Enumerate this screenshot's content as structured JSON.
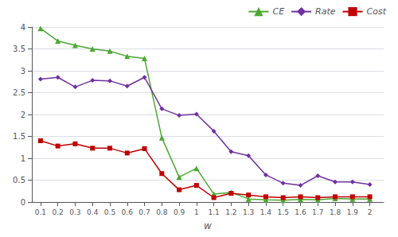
{
  "chart_data": {
    "type": "line",
    "xlabel": "w",
    "x": [
      0.1,
      0.2,
      0.3,
      0.4,
      0.5,
      0.6,
      0.7,
      0.8,
      0.9,
      1.0,
      1.1,
      1.2,
      1.3,
      1.4,
      1.5,
      1.6,
      1.7,
      1.8,
      1.9,
      2.0
    ],
    "series": [
      {
        "name": "CE",
        "color": "#4aa832",
        "marker": "triangle",
        "values": [
          3.97,
          3.68,
          3.58,
          3.5,
          3.45,
          3.33,
          3.28,
          1.47,
          0.57,
          0.77,
          0.18,
          0.22,
          0.07,
          0.05,
          0.04,
          0.06,
          0.05,
          0.08,
          0.07,
          0.07
        ]
      },
      {
        "name": "Rate",
        "color": "#7030a0",
        "marker": "diamond",
        "values": [
          2.81,
          2.85,
          2.63,
          2.78,
          2.77,
          2.65,
          2.85,
          2.13,
          1.98,
          2.01,
          1.62,
          1.15,
          1.06,
          0.62,
          0.43,
          0.38,
          0.6,
          0.46,
          0.46,
          0.4
        ]
      },
      {
        "name": "Cost",
        "color": "#c00000",
        "marker": "square",
        "values": [
          1.4,
          1.28,
          1.33,
          1.23,
          1.23,
          1.12,
          1.22,
          0.65,
          0.28,
          0.38,
          0.1,
          0.2,
          0.16,
          0.12,
          0.1,
          0.12,
          0.1,
          0.12,
          0.12,
          0.12
        ]
      }
    ],
    "xlim": [
      0.05,
      2.08
    ],
    "xticks": [
      0.1,
      0.2,
      0.3,
      0.4,
      0.5,
      0.6,
      0.7,
      0.8,
      0.9,
      1,
      1.1,
      1.2,
      1.3,
      1.4,
      1.5,
      1.6,
      1.7,
      1.8,
      1.9,
      2
    ],
    "ylim": [
      0,
      4.0
    ],
    "yticks": [
      0,
      0.5,
      1,
      1.5,
      2,
      2.5,
      3,
      3.5,
      4
    ],
    "grid": "y",
    "legend": "upper right"
  }
}
